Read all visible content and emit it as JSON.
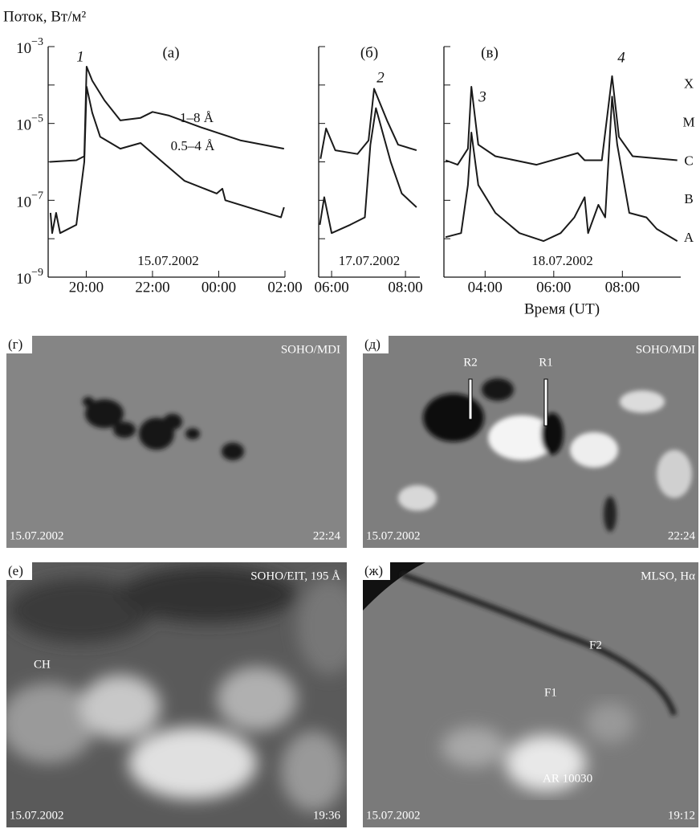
{
  "y_label": "Поток, Вт/м²",
  "x_label": "Время (UT)",
  "chart_data": [
    {
      "type": "line",
      "panel": "(а)",
      "date": "15.07.2002",
      "peaks": [
        "1"
      ],
      "log": true,
      "xlim": [
        18.85,
        26
      ],
      "xticks": [
        {
          "value": 20,
          "label": "20:00"
        },
        {
          "value": 22,
          "label": "22:00"
        },
        {
          "value": 24,
          "label": "00:00"
        },
        {
          "value": 26,
          "label": "02:00"
        }
      ],
      "ylim": [
        1e-09,
        0.001
      ],
      "yticks": [
        {
          "value": 0.001,
          "label": "10−3"
        },
        {
          "value": 1e-05,
          "label": "10−5"
        },
        {
          "value": 1e-07,
          "label": "10−7"
        },
        {
          "value": 1e-09,
          "label": "10−9"
        }
      ],
      "minor_yticks": [
        0.0001,
        1e-06,
        1e-08
      ],
      "series": [
        {
          "name": "1–8 Å",
          "color": "#1a1a1a",
          "x": [
            18.9,
            19.7,
            19.94,
            20.01,
            20.18,
            20.55,
            21.03,
            21.64,
            22.0,
            22.5,
            23.45,
            24.67,
            25.97
          ],
          "values": [
            1e-06,
            1.1e-06,
            1.4e-06,
            0.0003,
            0.00013,
            4e-05,
            1.2e-05,
            1.4e-05,
            2e-05,
            1.6e-05,
            8e-06,
            3.6e-06,
            2.2e-06
          ]
        },
        {
          "name": "0.5–4 Å",
          "color": "#1a1a1a",
          "x": [
            18.92,
            18.97,
            19.09,
            19.21,
            19.7,
            19.94,
            20.01,
            20.18,
            20.42,
            21.03,
            21.64,
            22.24,
            22.97,
            23.94,
            24.11,
            24.2,
            25.88,
            25.97
          ],
          "values": [
            4.7e-08,
            1.4e-08,
            4.7e-08,
            1.4e-08,
            2.3e-08,
            1e-06,
            9e-05,
            1.9e-05,
            4.5e-06,
            2.2e-06,
            3.1e-06,
            1.1e-06,
            3.2e-07,
            1.5e-07,
            2e-07,
            1e-07,
            3.6e-08,
            6.6e-08
          ]
        }
      ]
    },
    {
      "type": "line",
      "panel": "(б)",
      "date": "17.07.2002",
      "peaks": [
        "2"
      ],
      "log": true,
      "xlim": [
        5.65,
        8.39
      ],
      "xticks": [
        {
          "value": 6,
          "label": "06:00"
        },
        {
          "value": 8,
          "label": "08:00"
        }
      ],
      "ylim": [
        1e-09,
        0.001
      ],
      "series": [
        {
          "color": "#1a1a1a",
          "x": [
            5.7,
            5.85,
            6.1,
            6.7,
            7.0,
            7.15,
            7.5,
            7.8,
            8.3
          ],
          "values": [
            1.2e-06,
            7.4e-06,
            2e-06,
            1.6e-06,
            3.6e-06,
            8e-05,
            1.2e-05,
            2.8e-06,
            2e-06
          ]
        },
        {
          "color": "#1a1a1a",
          "x": [
            5.68,
            5.8,
            6.0,
            6.5,
            6.9,
            7.05,
            7.2,
            7.6,
            7.9,
            8.3
          ],
          "values": [
            2.3e-08,
            1.2e-07,
            1.4e-08,
            2.3e-08,
            3.6e-08,
            2.8e-06,
            2.5e-05,
            1e-06,
            1.5e-07,
            6.6e-08
          ]
        }
      ]
    },
    {
      "type": "line",
      "panel": "(в)",
      "date": "18.07.2002",
      "peaks": [
        "3",
        "4"
      ],
      "log": true,
      "xlim": [
        2.8,
        9.7
      ],
      "xticks": [
        {
          "value": 4,
          "label": "04:00"
        },
        {
          "value": 6,
          "label": "06:00"
        },
        {
          "value": 8,
          "label": "08:00"
        }
      ],
      "ylim": [
        1e-09,
        0.001
      ],
      "class_ticks": [
        {
          "value": 0.0001,
          "label": "X"
        },
        {
          "value": 1e-05,
          "label": "M"
        },
        {
          "value": 1e-06,
          "label": "C"
        },
        {
          "value": 1e-07,
          "label": "B"
        },
        {
          "value": 1e-08,
          "label": "A"
        }
      ],
      "series": [
        {
          "color": "#1a1a1a",
          "x": [
            2.85,
            3.2,
            3.5,
            3.6,
            3.8,
            4.3,
            5.5,
            6.7,
            6.9,
            7.4,
            7.7,
            7.9,
            8.3,
            9.6
          ],
          "values": [
            1.1e-06,
            8.4e-07,
            2.2e-06,
            9e-05,
            2.8e-06,
            1.4e-06,
            8.4e-07,
            1.7e-06,
            1.1e-06,
            1.1e-06,
            0.00017,
            4.5e-06,
            1.4e-06,
            1.1e-06
          ]
        },
        {
          "color": "#1a1a1a",
          "x": [
            2.85,
            3.3,
            3.5,
            3.6,
            3.8,
            4.3,
            5.0,
            5.7,
            6.2,
            6.6,
            6.9,
            7.0,
            7.3,
            7.5,
            7.7,
            7.85,
            8.2,
            8.7,
            9.0,
            9.6
          ],
          "values": [
            1.1e-08,
            1.4e-08,
            2.5e-07,
            5.8e-06,
            2.5e-07,
            4.7e-08,
            1.4e-08,
            8.7e-09,
            1.4e-08,
            3.6e-08,
            1.2e-07,
            1.4e-08,
            7.6e-08,
            3.6e-08,
            5e-05,
            2.8e-06,
            4.7e-08,
            3.6e-08,
            1.8e-08,
            8.7e-09
          ]
        }
      ]
    }
  ],
  "images": [
    {
      "panel": "(г)",
      "instrument": "SOHO/MDI",
      "date": "15.07.2002",
      "time": "22:24"
    },
    {
      "panel": "(д)",
      "instrument": "SOHO/MDI",
      "date": "15.07.2002",
      "time": "22:24",
      "labels": [
        "R2",
        "R1"
      ]
    },
    {
      "panel": "(е)",
      "instrument": "SOHO/EIT, 195 Å",
      "date": "15.07.2002",
      "time": "19:36",
      "labels": [
        "CH"
      ]
    },
    {
      "panel": "(ж)",
      "instrument": "MLSO, Hα",
      "date": "15.07.2002",
      "time": "19:12",
      "labels": [
        "F2",
        "F1",
        "AR 10030"
      ]
    }
  ]
}
